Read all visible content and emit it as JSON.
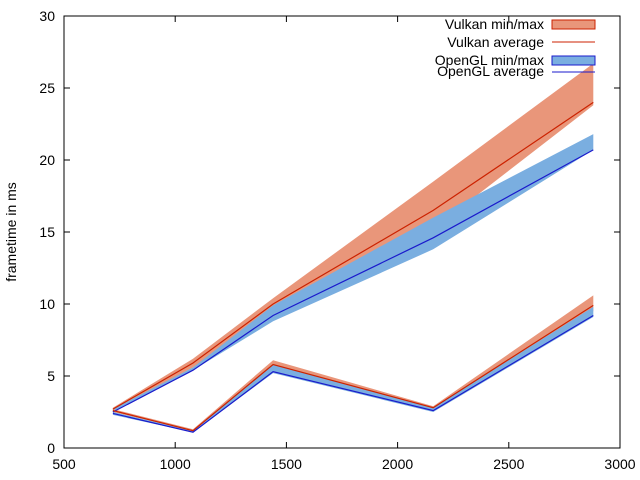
{
  "chart_data": {
    "type": "area",
    "title": "",
    "xlabel": "",
    "ylabel": "frametime in ms",
    "xlim": [
      500,
      3000
    ],
    "ylim": [
      0,
      30
    ],
    "x_ticks": [
      "500",
      "1000",
      "1500",
      "2000",
      "2500",
      "3000"
    ],
    "y_ticks": [
      "0",
      "5",
      "10",
      "15",
      "20",
      "25",
      "30"
    ],
    "grid": false,
    "legend_position": "top-right",
    "legend": {
      "vk_band": "Vulkan min/max",
      "vk_avg": "Vulkan average",
      "gl_band": "OpenGL min/max",
      "gl_avg": "OpenGL average"
    },
    "colors": {
      "vulkan_band": "#e9967a",
      "vulkan_line": "#cc2200",
      "opengl_band": "#7aaee0",
      "opengl_line": "#1a1acc"
    },
    "series": [
      {
        "name": "Vulkan min/max",
        "group": "upper",
        "x": [
          720,
          1080,
          1440,
          2160,
          2880
        ],
        "min": [
          2.6,
          5.6,
          9.6,
          15.2,
          23.8
        ],
        "max": [
          2.8,
          6.2,
          10.4,
          18.5,
          26.7
        ]
      },
      {
        "name": "Vulkan average",
        "group": "upper",
        "x": [
          720,
          1080,
          1440,
          2160,
          2880
        ],
        "values": [
          2.7,
          5.9,
          10.0,
          16.5,
          24.0
        ]
      },
      {
        "name": "OpenGL min/max",
        "group": "upper",
        "x": [
          720,
          1080,
          1440,
          2160,
          2880
        ],
        "min": [
          2.5,
          5.4,
          8.8,
          13.8,
          20.7
        ],
        "max": [
          2.7,
          5.6,
          9.9,
          16.0,
          21.8
        ]
      },
      {
        "name": "OpenGL average",
        "group": "upper",
        "x": [
          720,
          1080,
          1440,
          2160,
          2880
        ],
        "values": [
          2.5,
          5.4,
          9.2,
          14.6,
          20.7
        ]
      },
      {
        "name": "Vulkan min/max",
        "group": "lower",
        "x": [
          720,
          1080,
          1440,
          2160,
          2880
        ],
        "min": [
          2.5,
          1.2,
          5.6,
          2.7,
          9.5
        ],
        "max": [
          2.7,
          1.3,
          6.1,
          2.9,
          10.6
        ]
      },
      {
        "name": "Vulkan average",
        "group": "lower",
        "x": [
          720,
          1080,
          1440,
          2160,
          2880
        ],
        "values": [
          2.6,
          1.2,
          5.8,
          2.8,
          9.9
        ]
      },
      {
        "name": "OpenGL min/max",
        "group": "lower",
        "x": [
          720,
          1080,
          1440,
          2160,
          2880
        ],
        "min": [
          2.3,
          1.1,
          5.2,
          2.5,
          9.1
        ],
        "max": [
          2.5,
          1.2,
          5.8,
          2.8,
          9.8
        ]
      },
      {
        "name": "OpenGL average",
        "group": "lower",
        "x": [
          720,
          1080,
          1440,
          2160,
          2880
        ],
        "values": [
          2.4,
          1.1,
          5.3,
          2.6,
          9.2
        ]
      }
    ]
  }
}
